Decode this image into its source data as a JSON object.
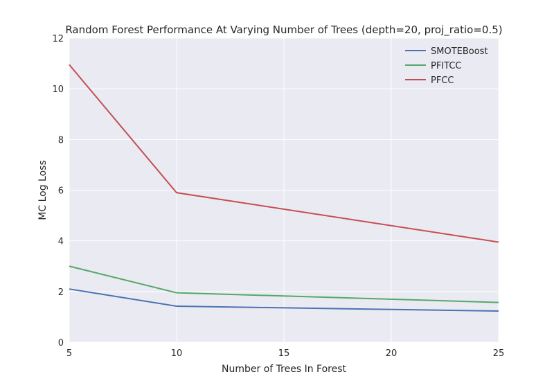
{
  "chart_data": {
    "type": "line",
    "title": "Random Forest Performance At Varying Number of Trees (depth=20, proj_ratio=0.5)",
    "xlabel": "Number of Trees In Forest",
    "ylabel": "MC Log Loss",
    "xlim": [
      5,
      25
    ],
    "ylim": [
      0,
      12
    ],
    "xticks": [
      5,
      10,
      15,
      20,
      25
    ],
    "yticks": [
      0,
      2,
      4,
      6,
      8,
      10,
      12
    ],
    "grid": true,
    "legend_position": "top-right",
    "x": [
      5,
      10,
      25
    ],
    "series": [
      {
        "name": "SMOTEBoost",
        "color": "#4c72b0",
        "values": [
          2.1,
          1.42,
          1.23
        ]
      },
      {
        "name": "PFITCC",
        "color": "#55a868",
        "values": [
          3.0,
          1.95,
          1.57
        ]
      },
      {
        "name": "PFCC",
        "color": "#c44e52",
        "values": [
          10.95,
          5.9,
          3.95
        ]
      }
    ]
  }
}
